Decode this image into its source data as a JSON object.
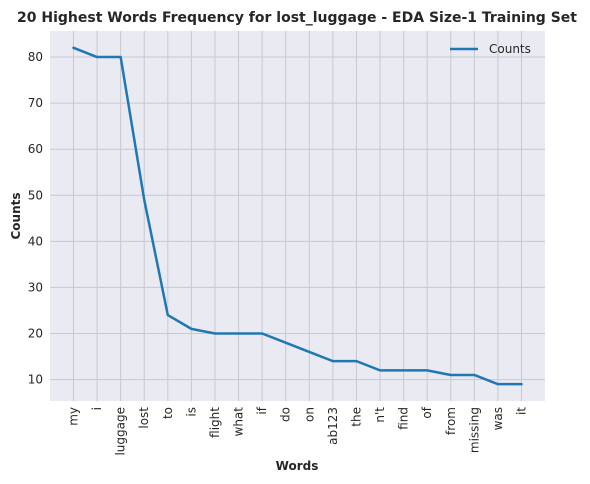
{
  "chart_data": {
    "type": "line",
    "title": "20 Highest Words Frequency for lost_luggage - EDA Size-1 Training Set",
    "xlabel": "Words",
    "ylabel": "Counts",
    "categories": [
      "my",
      "i",
      "luggage",
      "lost",
      "to",
      "is",
      "flight",
      "what",
      "if",
      "do",
      "on",
      "ab123",
      "the",
      "n't",
      "find",
      "of",
      "from",
      "missing",
      "was",
      "it"
    ],
    "series": [
      {
        "name": "Counts",
        "color": "#1f77b4",
        "values": [
          82,
          80,
          80,
          49,
          24,
          21,
          20,
          20,
          20,
          18,
          16,
          14,
          14,
          12,
          12,
          12,
          11,
          11,
          9,
          9
        ]
      }
    ],
    "ylim": [
      5.35,
      85.65
    ],
    "yticks": [
      "10",
      "20",
      "30",
      "40",
      "50",
      "60",
      "70",
      "80"
    ],
    "grid": true,
    "legend_position": "top-right",
    "colors": {
      "plot_background": "#eaeaf2",
      "grid": "#c8c8d0"
    }
  }
}
